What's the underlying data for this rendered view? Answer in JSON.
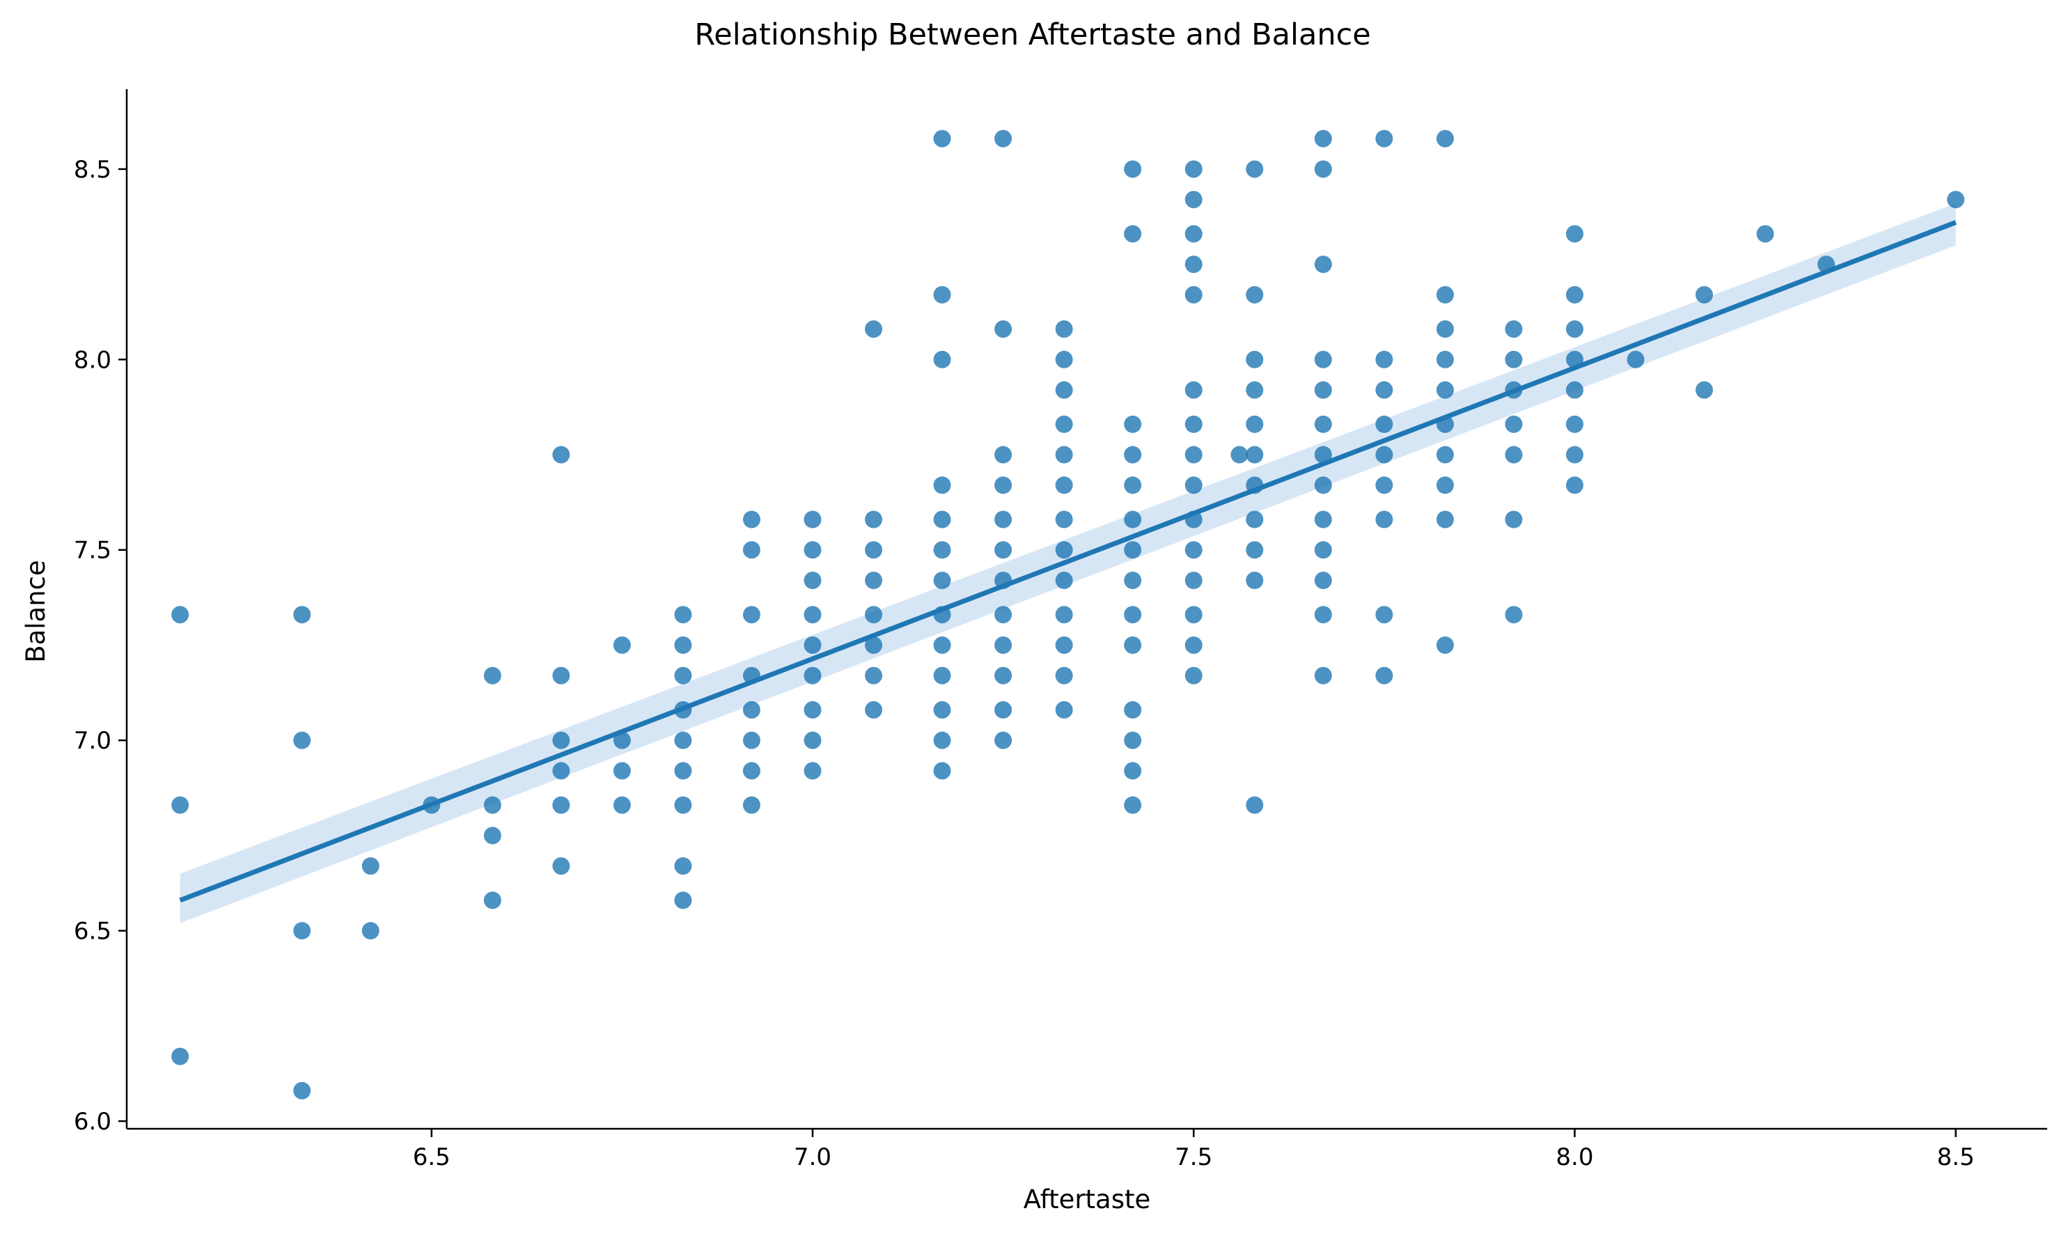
{
  "chart_data": {
    "type": "scatter",
    "title": "Relationship Between Aftertaste and Balance",
    "xlabel": "Aftertaste",
    "ylabel": "Balance",
    "xlim": [
      6.1,
      8.62
    ],
    "ylim": [
      5.98,
      8.71
    ],
    "xticks": [
      6.5,
      7.0,
      7.5,
      8.0,
      8.5
    ],
    "yticks": [
      6.0,
      6.5,
      7.0,
      7.5,
      8.0,
      8.5
    ],
    "xtick_labels": [
      "6.5",
      "7.0",
      "7.5",
      "8.0",
      "8.5"
    ],
    "ytick_labels": [
      "6.0",
      "6.5",
      "7.0",
      "7.5",
      "8.0",
      "8.5"
    ],
    "grid": false,
    "point_color": "#1f77b4",
    "regression": {
      "x": [
        6.17,
        8.5
      ],
      "y": [
        6.58,
        8.36
      ],
      "ci_lower": [
        6.52,
        8.3
      ],
      "ci_upper": [
        6.65,
        8.41
      ],
      "color": "#1f77b4",
      "ci_color": "#a6c8e8"
    },
    "series": [
      {
        "points": [
          [
            6.17,
            7.33
          ],
          [
            6.17,
            6.83
          ],
          [
            6.17,
            6.17
          ],
          [
            6.33,
            7.33
          ],
          [
            6.33,
            7.0
          ],
          [
            6.33,
            6.5
          ],
          [
            6.33,
            6.08
          ],
          [
            6.42,
            6.67
          ],
          [
            6.42,
            6.5
          ],
          [
            6.5,
            6.83
          ],
          [
            6.58,
            7.17
          ],
          [
            6.58,
            6.83
          ],
          [
            6.58,
            6.75
          ],
          [
            6.58,
            6.58
          ],
          [
            6.67,
            7.75
          ],
          [
            6.67,
            7.17
          ],
          [
            6.67,
            7.0
          ],
          [
            6.67,
            6.92
          ],
          [
            6.67,
            6.83
          ],
          [
            6.67,
            6.67
          ],
          [
            6.75,
            7.25
          ],
          [
            6.75,
            7.0
          ],
          [
            6.75,
            6.92
          ],
          [
            6.75,
            6.83
          ],
          [
            6.83,
            7.33
          ],
          [
            6.83,
            7.25
          ],
          [
            6.83,
            7.17
          ],
          [
            6.83,
            7.08
          ],
          [
            6.83,
            7.0
          ],
          [
            6.83,
            6.92
          ],
          [
            6.83,
            6.83
          ],
          [
            6.83,
            6.67
          ],
          [
            6.83,
            6.58
          ],
          [
            6.92,
            7.58
          ],
          [
            6.92,
            7.5
          ],
          [
            6.92,
            7.33
          ],
          [
            6.92,
            7.17
          ],
          [
            6.92,
            7.08
          ],
          [
            6.92,
            7.0
          ],
          [
            6.92,
            6.92
          ],
          [
            6.92,
            6.83
          ],
          [
            7.0,
            7.58
          ],
          [
            7.0,
            7.5
          ],
          [
            7.0,
            7.42
          ],
          [
            7.0,
            7.33
          ],
          [
            7.0,
            7.25
          ],
          [
            7.0,
            7.17
          ],
          [
            7.0,
            7.08
          ],
          [
            7.0,
            7.0
          ],
          [
            7.0,
            6.92
          ],
          [
            7.08,
            8.08
          ],
          [
            7.08,
            7.58
          ],
          [
            7.08,
            7.5
          ],
          [
            7.08,
            7.42
          ],
          [
            7.08,
            7.33
          ],
          [
            7.08,
            7.25
          ],
          [
            7.08,
            7.17
          ],
          [
            7.08,
            7.08
          ],
          [
            7.17,
            8.58
          ],
          [
            7.17,
            8.17
          ],
          [
            7.17,
            8.0
          ],
          [
            7.17,
            7.67
          ],
          [
            7.17,
            7.58
          ],
          [
            7.17,
            7.5
          ],
          [
            7.17,
            7.42
          ],
          [
            7.17,
            7.33
          ],
          [
            7.17,
            7.25
          ],
          [
            7.17,
            7.17
          ],
          [
            7.17,
            7.08
          ],
          [
            7.17,
            7.0
          ],
          [
            7.17,
            6.92
          ],
          [
            7.25,
            8.58
          ],
          [
            7.25,
            8.08
          ],
          [
            7.25,
            7.75
          ],
          [
            7.25,
            7.67
          ],
          [
            7.25,
            7.58
          ],
          [
            7.25,
            7.5
          ],
          [
            7.25,
            7.42
          ],
          [
            7.25,
            7.33
          ],
          [
            7.25,
            7.25
          ],
          [
            7.25,
            7.17
          ],
          [
            7.25,
            7.08
          ],
          [
            7.25,
            7.0
          ],
          [
            7.33,
            8.08
          ],
          [
            7.33,
            8.0
          ],
          [
            7.33,
            7.92
          ],
          [
            7.33,
            7.83
          ],
          [
            7.33,
            7.75
          ],
          [
            7.33,
            7.67
          ],
          [
            7.33,
            7.58
          ],
          [
            7.33,
            7.5
          ],
          [
            7.33,
            7.42
          ],
          [
            7.33,
            7.33
          ],
          [
            7.33,
            7.25
          ],
          [
            7.33,
            7.17
          ],
          [
            7.33,
            7.08
          ],
          [
            7.42,
            8.5
          ],
          [
            7.42,
            8.33
          ],
          [
            7.42,
            7.83
          ],
          [
            7.42,
            7.75
          ],
          [
            7.42,
            7.67
          ],
          [
            7.42,
            7.58
          ],
          [
            7.42,
            7.5
          ],
          [
            7.42,
            7.42
          ],
          [
            7.42,
            7.33
          ],
          [
            7.42,
            7.25
          ],
          [
            7.42,
            7.08
          ],
          [
            7.42,
            7.0
          ],
          [
            7.42,
            6.92
          ],
          [
            7.42,
            6.83
          ],
          [
            7.5,
            8.5
          ],
          [
            7.5,
            8.42
          ],
          [
            7.5,
            8.33
          ],
          [
            7.5,
            8.25
          ],
          [
            7.5,
            8.17
          ],
          [
            7.5,
            7.92
          ],
          [
            7.5,
            7.83
          ],
          [
            7.5,
            7.75
          ],
          [
            7.5,
            7.67
          ],
          [
            7.5,
            7.58
          ],
          [
            7.5,
            7.5
          ],
          [
            7.5,
            7.42
          ],
          [
            7.5,
            7.33
          ],
          [
            7.5,
            7.25
          ],
          [
            7.5,
            7.17
          ],
          [
            7.56,
            7.75
          ],
          [
            7.58,
            8.5
          ],
          [
            7.58,
            8.17
          ],
          [
            7.58,
            8.0
          ],
          [
            7.58,
            7.92
          ],
          [
            7.58,
            7.83
          ],
          [
            7.58,
            7.75
          ],
          [
            7.58,
            7.67
          ],
          [
            7.58,
            7.58
          ],
          [
            7.58,
            7.5
          ],
          [
            7.58,
            7.42
          ],
          [
            7.58,
            6.83
          ],
          [
            7.67,
            8.58
          ],
          [
            7.67,
            8.5
          ],
          [
            7.67,
            8.25
          ],
          [
            7.67,
            8.0
          ],
          [
            7.67,
            7.92
          ],
          [
            7.67,
            7.83
          ],
          [
            7.67,
            7.75
          ],
          [
            7.67,
            7.67
          ],
          [
            7.67,
            7.58
          ],
          [
            7.67,
            7.5
          ],
          [
            7.67,
            7.42
          ],
          [
            7.67,
            7.33
          ],
          [
            7.67,
            7.17
          ],
          [
            7.75,
            8.58
          ],
          [
            7.75,
            8.0
          ],
          [
            7.75,
            7.92
          ],
          [
            7.75,
            7.83
          ],
          [
            7.75,
            7.75
          ],
          [
            7.75,
            7.67
          ],
          [
            7.75,
            7.58
          ],
          [
            7.75,
            7.33
          ],
          [
            7.75,
            7.17
          ],
          [
            7.83,
            8.58
          ],
          [
            7.83,
            8.17
          ],
          [
            7.83,
            8.08
          ],
          [
            7.83,
            8.0
          ],
          [
            7.83,
            7.92
          ],
          [
            7.83,
            7.83
          ],
          [
            7.83,
            7.75
          ],
          [
            7.83,
            7.67
          ],
          [
            7.83,
            7.58
          ],
          [
            7.83,
            7.25
          ],
          [
            7.92,
            8.08
          ],
          [
            7.92,
            8.0
          ],
          [
            7.92,
            7.92
          ],
          [
            7.92,
            7.83
          ],
          [
            7.92,
            7.75
          ],
          [
            7.92,
            7.58
          ],
          [
            7.92,
            7.33
          ],
          [
            8.0,
            8.33
          ],
          [
            8.0,
            8.17
          ],
          [
            8.0,
            8.08
          ],
          [
            8.0,
            8.0
          ],
          [
            8.0,
            7.92
          ],
          [
            8.0,
            7.83
          ],
          [
            8.0,
            7.75
          ],
          [
            8.0,
            7.67
          ],
          [
            8.08,
            8.0
          ],
          [
            8.17,
            8.17
          ],
          [
            8.17,
            7.92
          ],
          [
            8.25,
            8.33
          ],
          [
            8.33,
            8.25
          ],
          [
            8.5,
            8.42
          ]
        ]
      }
    ]
  }
}
